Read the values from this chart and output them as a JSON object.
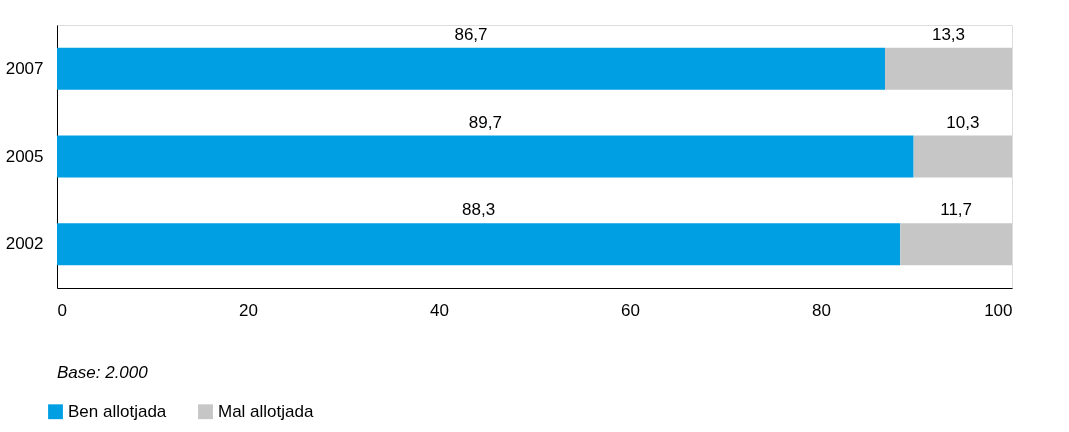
{
  "chart_data": {
    "type": "bar",
    "orientation": "horizontal",
    "stacked": true,
    "categories": [
      "2007",
      "2005",
      "2002"
    ],
    "series": [
      {
        "name": "Ben allotjada",
        "color": "#009fe3",
        "values": [
          86.7,
          89.7,
          88.3
        ],
        "value_labels": [
          "86,7",
          "89,7",
          "88,3"
        ]
      },
      {
        "name": "Mal allotjada",
        "color": "#c6c6c6",
        "values": [
          13.3,
          10.3,
          11.7
        ],
        "value_labels": [
          "13,3",
          "10,3",
          "11,7"
        ]
      }
    ],
    "xlim": [
      0,
      100
    ],
    "xticks": [
      0,
      20,
      40,
      60,
      80,
      100
    ],
    "grid": false,
    "legend": "bottom",
    "annotations": [
      "Base: 2.000"
    ]
  }
}
